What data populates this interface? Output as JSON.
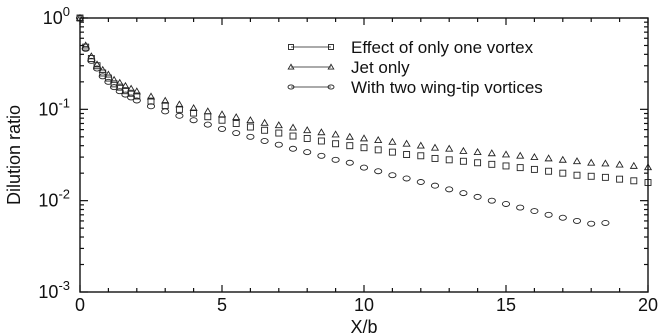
{
  "chart_data": {
    "type": "scatter",
    "xlabel": "X/b",
    "ylabel": "Dilution ratio",
    "xlim": [
      0,
      20
    ],
    "ylim": [
      0.001,
      1
    ],
    "yscale": "log",
    "grid": false,
    "legend_position": "top-right",
    "x_ticks": [
      0,
      5,
      10,
      15,
      20
    ],
    "x_tick_labels": [
      "0",
      "5",
      "10",
      "15",
      "20"
    ],
    "y_ticks": [
      1,
      0.1,
      0.01,
      0.001
    ],
    "y_tick_labels": [
      {
        "base": "10",
        "exp": "0"
      },
      {
        "base": "10",
        "exp": "-1"
      },
      {
        "base": "10",
        "exp": "-2"
      },
      {
        "base": "10",
        "exp": "-3"
      }
    ],
    "series": [
      {
        "name": "Effect of only one vortex",
        "marker": "square",
        "x": [
          0.0,
          0.2,
          0.4,
          0.6,
          0.8,
          1.0,
          1.2,
          1.4,
          1.6,
          1.8,
          2.0,
          2.5,
          3.0,
          3.5,
          4.0,
          4.5,
          5.0,
          5.5,
          6.0,
          6.5,
          7.0,
          7.5,
          8.0,
          8.5,
          9.0,
          9.5,
          10.0,
          10.5,
          11.0,
          11.5,
          12.0,
          12.5,
          13.0,
          13.5,
          14.0,
          14.5,
          15.0,
          15.5,
          16.0,
          16.5,
          17.0,
          17.5,
          18.0,
          18.5,
          19.0,
          19.5,
          20.0
        ],
        "y": [
          1.0,
          0.48,
          0.36,
          0.3,
          0.25,
          0.22,
          0.19,
          0.175,
          0.16,
          0.15,
          0.14,
          0.123,
          0.11,
          0.1,
          0.091,
          0.083,
          0.076,
          0.07,
          0.064,
          0.059,
          0.055,
          0.051,
          0.048,
          0.045,
          0.042,
          0.04,
          0.038,
          0.036,
          0.034,
          0.032,
          0.031,
          0.029,
          0.028,
          0.027,
          0.026,
          0.025,
          0.024,
          0.023,
          0.022,
          0.021,
          0.02,
          0.019,
          0.0185,
          0.018,
          0.0172,
          0.0165,
          0.0158
        ]
      },
      {
        "name": "Jet only",
        "marker": "triangle",
        "x": [
          0.0,
          0.2,
          0.4,
          0.6,
          0.8,
          1.0,
          1.2,
          1.4,
          1.6,
          1.8,
          2.0,
          2.5,
          3.0,
          3.5,
          4.0,
          4.5,
          5.0,
          5.5,
          6.0,
          6.5,
          7.0,
          7.5,
          8.0,
          8.5,
          9.0,
          9.5,
          10.0,
          10.5,
          11.0,
          11.5,
          12.0,
          12.5,
          13.0,
          13.5,
          14.0,
          14.5,
          15.0,
          15.5,
          16.0,
          16.5,
          17.0,
          17.5,
          18.0,
          18.5,
          19.0,
          19.5,
          20.0
        ],
        "y": [
          1.0,
          0.5,
          0.38,
          0.31,
          0.27,
          0.24,
          0.21,
          0.195,
          0.18,
          0.168,
          0.157,
          0.138,
          0.124,
          0.113,
          0.103,
          0.095,
          0.088,
          0.082,
          0.076,
          0.071,
          0.067,
          0.063,
          0.059,
          0.056,
          0.053,
          0.05,
          0.048,
          0.046,
          0.044,
          0.042,
          0.04,
          0.038,
          0.037,
          0.035,
          0.034,
          0.033,
          0.032,
          0.031,
          0.03,
          0.029,
          0.028,
          0.027,
          0.026,
          0.0255,
          0.0248,
          0.024,
          0.0232
        ]
      },
      {
        "name": "With two wing-tip vortices",
        "marker": "circle",
        "x": [
          0.0,
          0.2,
          0.4,
          0.6,
          0.8,
          1.0,
          1.2,
          1.4,
          1.6,
          1.8,
          2.0,
          2.5,
          3.0,
          3.5,
          4.0,
          4.5,
          5.0,
          5.5,
          6.0,
          6.5,
          7.0,
          7.5,
          8.0,
          8.5,
          9.0,
          9.5,
          10.0,
          10.5,
          11.0,
          11.5,
          12.0,
          12.5,
          13.0,
          13.5,
          14.0,
          14.5,
          15.0,
          15.5,
          16.0,
          16.5,
          17.0,
          17.5,
          18.0,
          18.5
        ],
        "y": [
          1.0,
          0.46,
          0.34,
          0.28,
          0.23,
          0.2,
          0.175,
          0.158,
          0.145,
          0.135,
          0.125,
          0.108,
          0.095,
          0.085,
          0.076,
          0.068,
          0.061,
          0.055,
          0.05,
          0.045,
          0.041,
          0.037,
          0.034,
          0.031,
          0.028,
          0.026,
          0.023,
          0.021,
          0.019,
          0.0175,
          0.016,
          0.0146,
          0.0133,
          0.0121,
          0.011,
          0.01,
          0.0092,
          0.0084,
          0.0077,
          0.007,
          0.0065,
          0.006,
          0.0056,
          0.0057
        ]
      }
    ]
  }
}
